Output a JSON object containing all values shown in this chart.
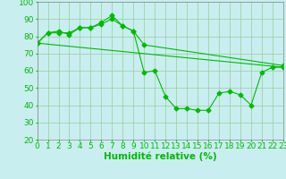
{
  "series": [
    {
      "x": [
        0,
        1,
        2,
        3,
        4,
        5,
        6,
        7,
        8,
        9,
        10,
        11,
        12,
        13,
        14,
        15,
        16,
        17,
        18,
        19,
        20,
        21,
        22,
        23
      ],
      "y": [
        76,
        82,
        82,
        82,
        85,
        85,
        88,
        92,
        86,
        83,
        59,
        60,
        45,
        38,
        38,
        37,
        37,
        47,
        48,
        46,
        40,
        59,
        62,
        62
      ]
    },
    {
      "x": [
        0,
        1,
        2,
        3,
        4,
        5,
        6,
        7,
        8,
        9,
        10,
        23
      ],
      "y": [
        76,
        82,
        83,
        81,
        85,
        85,
        87,
        90,
        86,
        83,
        75,
        63
      ]
    },
    {
      "x": [
        0,
        23
      ],
      "y": [
        76,
        62
      ]
    }
  ],
  "line_color": "#00bb00",
  "marker": "D",
  "marker_size": 2.5,
  "xlim": [
    0,
    23
  ],
  "ylim": [
    20,
    100
  ],
  "yticks": [
    20,
    30,
    40,
    50,
    60,
    70,
    80,
    90,
    100
  ],
  "xticks": [
    0,
    1,
    2,
    3,
    4,
    5,
    6,
    7,
    8,
    9,
    10,
    11,
    12,
    13,
    14,
    15,
    16,
    17,
    18,
    19,
    20,
    21,
    22,
    23
  ],
  "xlabel": "Humidité relative (%)",
  "bg_color": "#c8eef0",
  "grid_color": "#99cc99",
  "xlabel_fontsize": 7.5,
  "tick_fontsize": 6.5
}
